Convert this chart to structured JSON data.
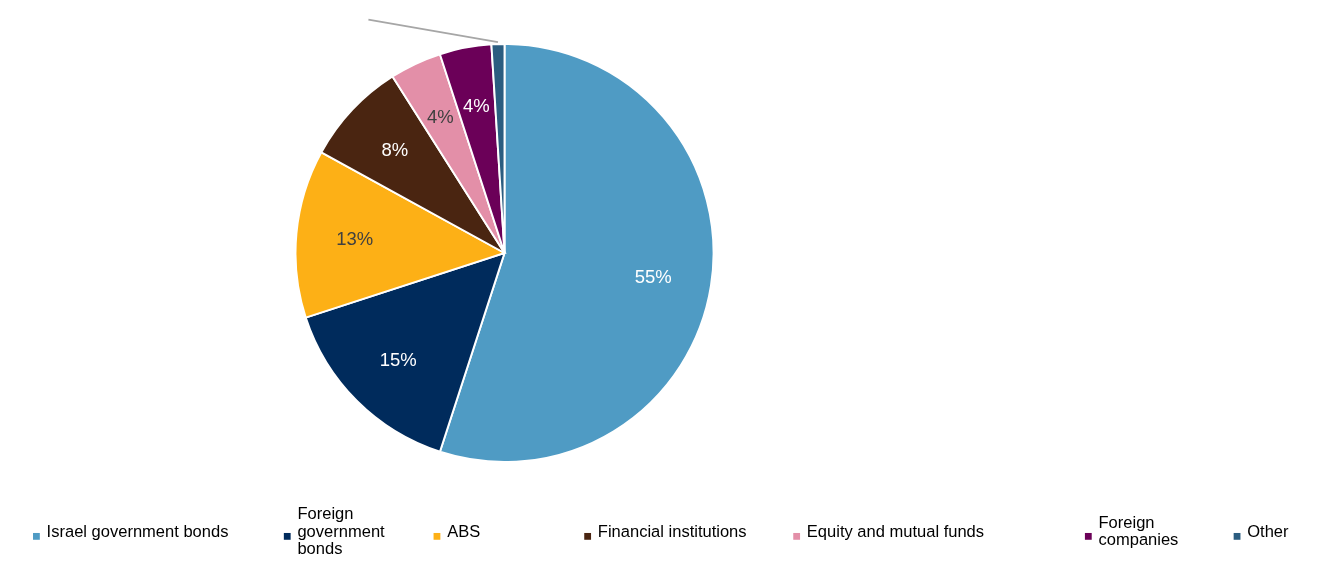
{
  "chart_data": {
    "type": "pie",
    "categories": [
      "Israel government bonds",
      "Foreign government bonds",
      "ABS",
      "Financial institutions",
      "Equity and mutual funds",
      "Foreign companies",
      "Other"
    ],
    "values": [
      55,
      15,
      13,
      8,
      4,
      4,
      1
    ],
    "colors": [
      "#4f9bc4",
      "#002b5c",
      "#fdb016",
      "#4a2511",
      "#e38fa8",
      "#6b0058",
      "#2b5d80"
    ],
    "value_labels": [
      "55%",
      "15%",
      "13%",
      "8%",
      "4%",
      "4%",
      null
    ],
    "legend": "bottom"
  }
}
